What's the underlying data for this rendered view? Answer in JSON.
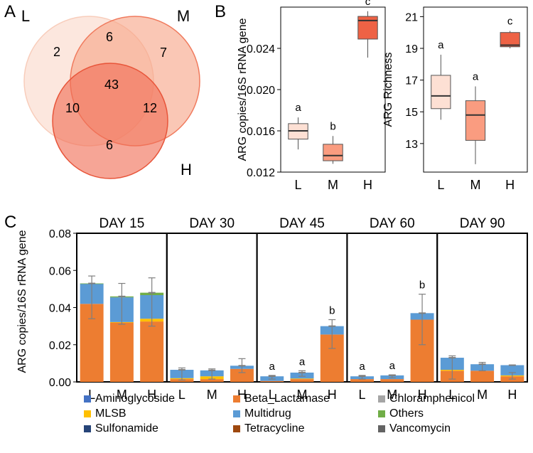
{
  "panel_letters": {
    "a": "A",
    "b": "B",
    "c": "C"
  },
  "colors": {
    "L": "#FDE0D4",
    "M": "#FA9C80",
    "H": "#EE6245",
    "venn_L": "#FCE3D8",
    "venn_M": "#F7A488",
    "venn_H": "#F06E55",
    "venn_L_edge": "#F8CDBB",
    "venn_M_edge": "#F07A5D",
    "venn_H_edge": "#E8553A",
    "Aminoglycoside": "#4472C4",
    "Beta_Lactamase": "#ED7D31",
    "Chloramphenicol": "#A5A5A5",
    "MLSB": "#FFC000",
    "Multidrug": "#5B9BD5",
    "Others": "#70AD47",
    "Sulfonamide": "#264478",
    "Tetracycline": "#9E480E",
    "Vancomycin": "#636363",
    "errorbar": "#7F7F7F"
  },
  "venn": {
    "set_labels": {
      "L": "L",
      "M": "M",
      "H": "H"
    },
    "regions": {
      "L_only": "2",
      "M_only": "7",
      "H_only": "6",
      "LM": "6",
      "LH": "10",
      "MH": "12",
      "LMH": "43"
    }
  },
  "chart_data": [
    {
      "id": "B1",
      "type": "box",
      "title": "",
      "xlabel": "",
      "ylabel": "ARG copies/16S rRNA gene",
      "categories": [
        "L",
        "M",
        "H"
      ],
      "ylim": [
        0.012,
        0.028
      ],
      "yticks": [
        0.012,
        0.016,
        0.02,
        0.024
      ],
      "ytick_labels": [
        "0.012",
        "0.016",
        "0.020",
        "0.024"
      ],
      "boxes": [
        {
          "category": "L",
          "whisker_low": 0.0142,
          "q1": 0.0152,
          "median": 0.016,
          "q3": 0.0167,
          "whisker_high": 0.0173,
          "letter": "a"
        },
        {
          "category": "M",
          "whisker_low": 0.0128,
          "q1": 0.0131,
          "median": 0.0136,
          "q3": 0.0147,
          "whisker_high": 0.0155,
          "letter": "b"
        },
        {
          "category": "H",
          "whisker_low": 0.0231,
          "q1": 0.0249,
          "median": 0.0267,
          "q3": 0.0271,
          "whisker_high": 0.0276,
          "letter": "c"
        }
      ]
    },
    {
      "id": "B2",
      "type": "box",
      "title": "",
      "xlabel": "",
      "ylabel": "ARG Richness",
      "categories": [
        "L",
        "M",
        "H"
      ],
      "ylim": [
        11.2,
        21.6
      ],
      "yticks": [
        13,
        15,
        17,
        19,
        21
      ],
      "ytick_labels": [
        "13",
        "15",
        "17",
        "19",
        "21"
      ],
      "boxes": [
        {
          "category": "L",
          "whisker_low": 14.5,
          "q1": 15.2,
          "median": 16.0,
          "q3": 17.3,
          "whisker_high": 18.6,
          "letter": "a"
        },
        {
          "category": "M",
          "whisker_low": 11.7,
          "q1": 13.2,
          "median": 14.8,
          "q3": 15.7,
          "whisker_high": 16.6,
          "letter": "a"
        },
        {
          "category": "H",
          "whisker_low": 19.0,
          "q1": 19.1,
          "median": 19.2,
          "q3": 20.0,
          "whisker_high": 20.1,
          "letter": "c"
        }
      ]
    },
    {
      "id": "C",
      "type": "stacked_bar",
      "title": "",
      "xlabel": "",
      "ylabel": "ARG copies/16S rRNA gene",
      "ylim": [
        0,
        0.08
      ],
      "yticks": [
        0,
        0.02,
        0.04,
        0.06,
        0.08
      ],
      "ytick_labels": [
        "0.00",
        "0.02",
        "0.04",
        "0.06",
        "0.08"
      ],
      "categories": [
        "L",
        "M",
        "H"
      ],
      "legend": [
        "Aminoglycoside",
        "Beta_Lactamase",
        "Chloramphenicol",
        "MLSB",
        "Multidrug",
        "Others",
        "Sulfonamide",
        "Tetracycline",
        "Vancomycin"
      ],
      "groups": [
        {
          "label": "DAY 15",
          "bars": [
            {
              "category": "L",
              "segments": {
                "Beta_Lactamase": 0.042,
                "MLSB": 0.0,
                "Multidrug": 0.0108,
                "Others": 0.0002
              },
              "error_low": 0.034,
              "error_high": 0.057,
              "letter": ""
            },
            {
              "category": "M",
              "segments": {
                "Beta_Lactamase": 0.032,
                "MLSB": 0.0002,
                "Multidrug": 0.0133,
                "Others": 0.0005
              },
              "error_low": 0.031,
              "error_high": 0.053,
              "letter": ""
            },
            {
              "category": "H",
              "segments": {
                "Beta_Lactamase": 0.0325,
                "MLSB": 0.0015,
                "Multidrug": 0.0127,
                "Others": 0.0013
              },
              "error_low": 0.03,
              "error_high": 0.056,
              "letter": ""
            }
          ]
        },
        {
          "label": "DAY 30",
          "bars": [
            {
              "category": "L",
              "segments": {
                "Beta_Lactamase": 0.0015,
                "MLSB": 0.0005,
                "Multidrug": 0.0045,
                "Others": 0.0
              },
              "error_low": 0.001,
              "error_high": 0.0075,
              "letter": ""
            },
            {
              "category": "M",
              "segments": {
                "Beta_Lactamase": 0.0015,
                "MLSB": 0.0015,
                "Multidrug": 0.0032,
                "Others": 0.0
              },
              "error_low": 0.0015,
              "error_high": 0.007,
              "letter": ""
            },
            {
              "category": "H",
              "segments": {
                "Beta_Lactamase": 0.007,
                "MLSB": 0.0,
                "Multidrug": 0.0017,
                "Others": 0.0
              },
              "error_low": 0.005,
              "error_high": 0.0125,
              "letter": ""
            }
          ]
        },
        {
          "label": "DAY 45",
          "bars": [
            {
              "category": "L",
              "segments": {
                "Beta_Lactamase": 0.0005,
                "MLSB": 0.0,
                "Multidrug": 0.0025,
                "Others": 0.0
              },
              "error_low": 0.0015,
              "error_high": 0.0035,
              "letter": "a"
            },
            {
              "category": "M",
              "segments": {
                "Beta_Lactamase": 0.0015,
                "MLSB": 0.0003,
                "Multidrug": 0.0032,
                "Others": 0.0
              },
              "error_low": 0.003,
              "error_high": 0.006,
              "letter": "a"
            },
            {
              "category": "H",
              "segments": {
                "Beta_Lactamase": 0.0255,
                "MLSB": 0.0,
                "Multidrug": 0.0045,
                "Others": 0.0
              },
              "error_low": 0.018,
              "error_high": 0.0335,
              "letter": "b"
            }
          ]
        },
        {
          "label": "DAY 60",
          "bars": [
            {
              "category": "L",
              "segments": {
                "Beta_Lactamase": 0.0015,
                "MLSB": 0.0,
                "Multidrug": 0.0015,
                "Others": 0.0
              },
              "error_low": 0.0015,
              "error_high": 0.0035,
              "letter": "a"
            },
            {
              "category": "M",
              "segments": {
                "Beta_Lactamase": 0.0015,
                "MLSB": 0.0,
                "Multidrug": 0.002,
                "Others": 0.0
              },
              "error_low": 0.0022,
              "error_high": 0.0038,
              "letter": "a"
            },
            {
              "category": "H",
              "segments": {
                "Beta_Lactamase": 0.0335,
                "MLSB": 0.0,
                "Multidrug": 0.0035,
                "Others": 0.0
              },
              "error_low": 0.02,
              "error_high": 0.0472,
              "letter": "b"
            }
          ]
        },
        {
          "label": "DAY 90",
          "bars": [
            {
              "category": "L",
              "segments": {
                "Beta_Lactamase": 0.006,
                "MLSB": 0.0005,
                "Multidrug": 0.0065,
                "Others": 0.0
              },
              "error_low": 0.0015,
              "error_high": 0.014,
              "letter": ""
            },
            {
              "category": "M",
              "segments": {
                "Beta_Lactamase": 0.006,
                "MLSB": 0.0,
                "Multidrug": 0.0035,
                "Others": 0.0
              },
              "error_low": 0.006,
              "error_high": 0.0105,
              "letter": ""
            },
            {
              "category": "H",
              "segments": {
                "Beta_Lactamase": 0.003,
                "MLSB": 0.0005,
                "Multidrug": 0.0055,
                "Others": 0.0
              },
              "error_low": 0.0015,
              "error_high": 0.005,
              "letter": ""
            }
          ]
        }
      ]
    }
  ],
  "legend_items": [
    {
      "key": "Aminoglycoside",
      "label": "Aminoglycoside"
    },
    {
      "key": "Beta_Lactamase",
      "label": "Beta_Lactamase"
    },
    {
      "key": "Chloramphenicol",
      "label": "Chloramphenicol"
    },
    {
      "key": "MLSB",
      "label": "MLSB"
    },
    {
      "key": "Multidrug",
      "label": "Multidrug"
    },
    {
      "key": "Others",
      "label": "Others"
    },
    {
      "key": "Sulfonamide",
      "label": "Sulfonamide"
    },
    {
      "key": "Tetracycline",
      "label": "Tetracycline"
    },
    {
      "key": "Vancomycin",
      "label": "Vancomycin"
    }
  ]
}
